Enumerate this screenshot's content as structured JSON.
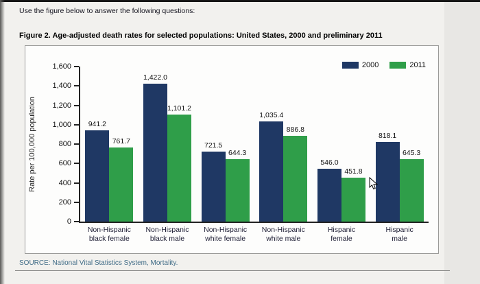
{
  "header": {
    "instruction": "Use the figure below to answer the following questions:"
  },
  "figure": {
    "title": "Figure 2. Age-adjusted death rates for selected populations: United States, 2000 and preliminary 2011"
  },
  "source": "SOURCE: National Vital Statistics System, Mortality.",
  "colors": {
    "series_2000": "#1f3864",
    "series_2011": "#2f9e49"
  },
  "chart_data": {
    "type": "bar",
    "title": "Figure 2. Age-adjusted death rates for selected populations: United States, 2000 and preliminary 2011",
    "xlabel": "",
    "ylabel": "Rate per 100,000 population",
    "ylim": [
      0,
      1600
    ],
    "ytick_step": 200,
    "grid": false,
    "legend_position": "top-right",
    "categories": [
      [
        "Non-Hispanic",
        "black female"
      ],
      [
        "Non-Hispanic",
        "black male"
      ],
      [
        "Non-Hispanic",
        "white female"
      ],
      [
        "Non-Hispanic",
        "white male"
      ],
      [
        "Hispanic",
        "female"
      ],
      [
        "Hispanic",
        "male"
      ]
    ],
    "series": [
      {
        "name": "2000",
        "color": "#1f3864",
        "values": [
          941.2,
          1422.0,
          721.5,
          1035.4,
          546.0,
          818.1
        ],
        "labels": [
          "941.2",
          "1,422.0",
          "721.5",
          "1,035.4",
          "546.0",
          "818.1"
        ]
      },
      {
        "name": "2011",
        "color": "#2f9e49",
        "values": [
          761.7,
          1101.2,
          644.3,
          886.8,
          451.8,
          645.3
        ],
        "labels": [
          "761.7",
          "1,101.2",
          "644.3",
          "886.8",
          "451.8",
          "645.3"
        ]
      }
    ]
  }
}
